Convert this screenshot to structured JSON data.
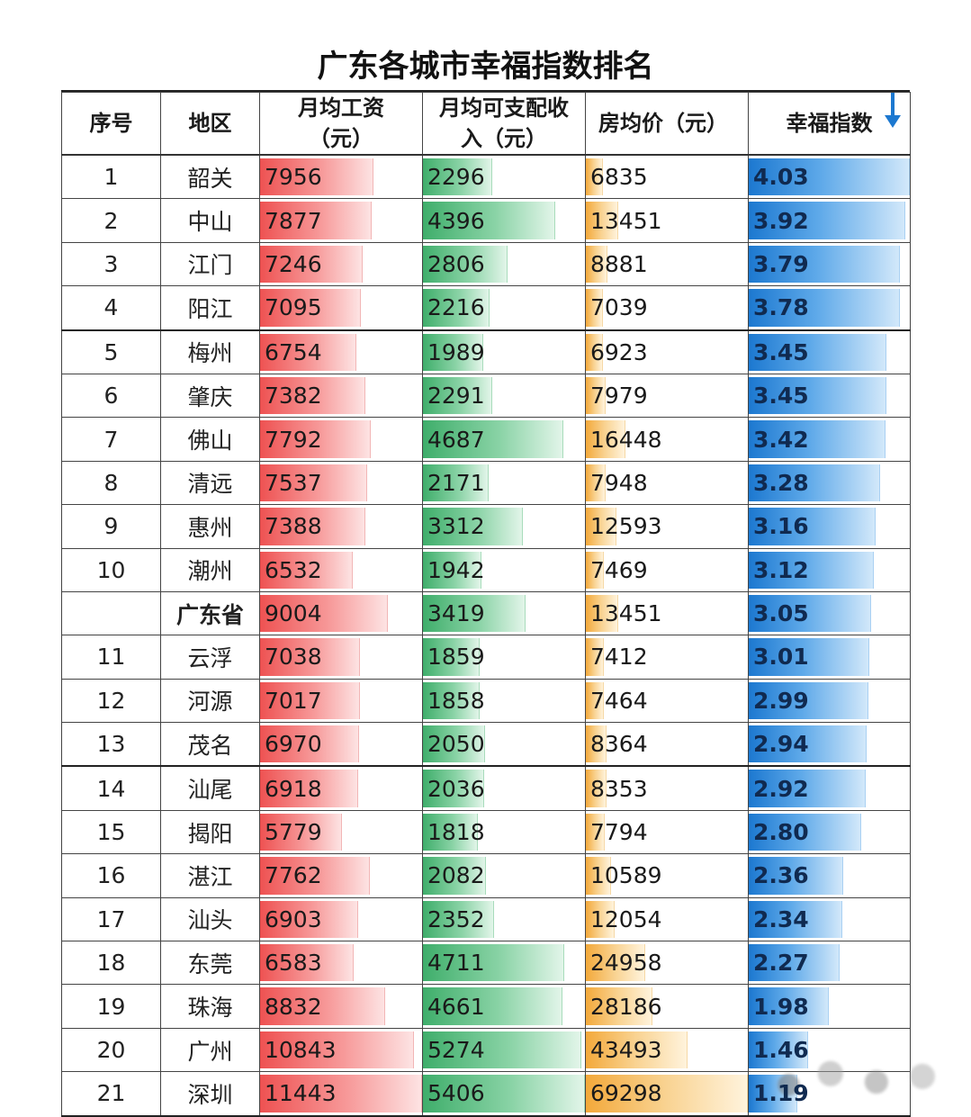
{
  "title": "广东各城市幸福指数排名",
  "headers": {
    "rank": "序号",
    "region": "地区",
    "wage_line1": "月均工资",
    "wage_line2": "（元）",
    "income_line1": "月均可支配收",
    "income_line2": "入（元）",
    "price": "房均价（元）",
    "index": "幸福指数"
  },
  "colors": {
    "wage": "#ee5252",
    "income": "#3fae6b",
    "price": "#f3a93b",
    "index": "#1c78d0",
    "sort_arrow": "#1c78d0"
  },
  "icons": {
    "sort": "arrow-down-icon"
  },
  "chart_data": {
    "type": "table",
    "title": "广东各城市幸福指数排名",
    "columns": [
      "序号",
      "地区",
      "月均工资（元）",
      "月均可支配收入（元）",
      "房均价（元）",
      "幸福指数"
    ],
    "sorted_by": "幸福指数",
    "sort_order": "descending",
    "rows": [
      {
        "rank": "1",
        "region": "韶关",
        "wage": "7956",
        "income": "2296",
        "price": "6835",
        "index": "4.03"
      },
      {
        "rank": "2",
        "region": "中山",
        "wage": "7877",
        "income": "4396",
        "price": "13451",
        "index": "3.92"
      },
      {
        "rank": "3",
        "region": "江门",
        "wage": "7246",
        "income": "2806",
        "price": "8881",
        "index": "3.79"
      },
      {
        "rank": "4",
        "region": "阳江",
        "wage": "7095",
        "income": "2216",
        "price": "7039",
        "index": "3.78"
      },
      {
        "rank": "5",
        "region": "梅州",
        "wage": "6754",
        "income": "1989",
        "price": "6923",
        "index": "3.45"
      },
      {
        "rank": "6",
        "region": "肇庆",
        "wage": "7382",
        "income": "2291",
        "price": "7979",
        "index": "3.45"
      },
      {
        "rank": "7",
        "region": "佛山",
        "wage": "7792",
        "income": "4687",
        "price": "16448",
        "index": "3.42"
      },
      {
        "rank": "8",
        "region": "清远",
        "wage": "7537",
        "income": "2171",
        "price": "7948",
        "index": "3.28"
      },
      {
        "rank": "9",
        "region": "惠州",
        "wage": "7388",
        "income": "3312",
        "price": "12593",
        "index": "3.16"
      },
      {
        "rank": "10",
        "region": "潮州",
        "wage": "6532",
        "income": "1942",
        "price": "7469",
        "index": "3.12"
      },
      {
        "rank": "",
        "region": "广东省",
        "wage": "9004",
        "income": "3419",
        "price": "13451",
        "index": "3.05",
        "bold": true
      },
      {
        "rank": "11",
        "region": "云浮",
        "wage": "7038",
        "income": "1859",
        "price": "7412",
        "index": "3.01"
      },
      {
        "rank": "12",
        "region": "河源",
        "wage": "7017",
        "income": "1858",
        "price": "7464",
        "index": "2.99"
      },
      {
        "rank": "13",
        "region": "茂名",
        "wage": "6970",
        "income": "2050",
        "price": "8364",
        "index": "2.94"
      },
      {
        "rank": "14",
        "region": "汕尾",
        "wage": "6918",
        "income": "2036",
        "price": "8353",
        "index": "2.92"
      },
      {
        "rank": "15",
        "region": "揭阳",
        "wage": "5779",
        "income": "1818",
        "price": "7794",
        "index": "2.80"
      },
      {
        "rank": "16",
        "region": "湛江",
        "wage": "7762",
        "income": "2082",
        "price": "10589",
        "index": "2.36"
      },
      {
        "rank": "17",
        "region": "汕头",
        "wage": "6903",
        "income": "2352",
        "price": "12054",
        "index": "2.34"
      },
      {
        "rank": "18",
        "region": "东莞",
        "wage": "6583",
        "income": "4711",
        "price": "24958",
        "index": "2.27"
      },
      {
        "rank": "19",
        "region": "珠海",
        "wage": "8832",
        "income": "4661",
        "price": "28186",
        "index": "1.98"
      },
      {
        "rank": "20",
        "region": "广州",
        "wage": "10843",
        "income": "5274",
        "price": "43493",
        "index": "1.46"
      },
      {
        "rank": "21",
        "region": "深圳",
        "wage": "11443",
        "income": "5406",
        "price": "69298",
        "index": "1.19"
      }
    ],
    "bar_scales": {
      "wage": [
        0,
        11443
      ],
      "income": [
        0,
        5406
      ],
      "price": [
        0,
        69298
      ],
      "index": [
        0,
        4.03
      ]
    },
    "group_breaks_before_rank": [
      "5",
      "14"
    ]
  }
}
